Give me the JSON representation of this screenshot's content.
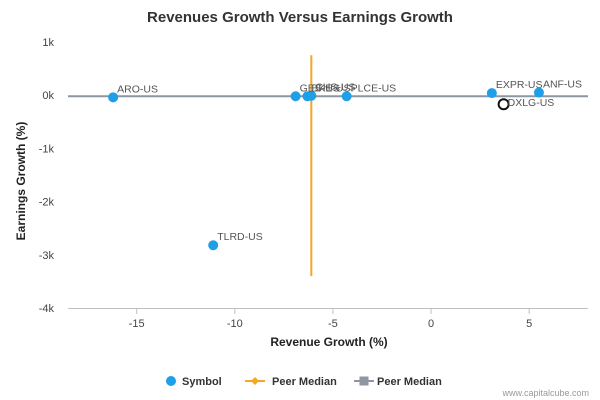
{
  "chart_data": {
    "type": "scatter",
    "title": "Revenues Growth Versus Earnings Growth",
    "xlabel": "Revenue Growth (%)",
    "ylabel": "Earnings Growth (%)",
    "xlim": [
      -18.5,
      8
    ],
    "ylim": [
      -4000,
      1000
    ],
    "x_ticks": [
      {
        "value": -15,
        "label": "-15"
      },
      {
        "value": -10,
        "label": "-10"
      },
      {
        "value": -5,
        "label": "-5"
      },
      {
        "value": 0,
        "label": "0"
      },
      {
        "value": 5,
        "label": "5"
      }
    ],
    "y_ticks": [
      {
        "value": 1000,
        "label": "1k"
      },
      {
        "value": 0,
        "label": "0k"
      },
      {
        "value": -1000,
        "label": "-1k"
      },
      {
        "value": -2000,
        "label": "-2k"
      },
      {
        "value": -3000,
        "label": "-3k"
      },
      {
        "value": -4000,
        "label": "-4k"
      }
    ],
    "grid": false,
    "series": [
      {
        "name": "Symbol",
        "color": "#1e9fe8",
        "points": [
          {
            "label": "ARO-US",
            "x": -16.2,
            "y": -40
          },
          {
            "label": "TLRD-US",
            "x": -11.1,
            "y": -2820
          },
          {
            "label": "GES-US",
            "x": -6.9,
            "y": -20
          },
          {
            "label": "BKE-US",
            "x": -6.3,
            "y": -20
          },
          {
            "label": "CHS-US",
            "x": -6.1,
            "y": -10
          },
          {
            "label": "PLCE-US",
            "x": -4.3,
            "y": -20
          },
          {
            "label": "EXPR-US",
            "x": 3.1,
            "y": 40
          },
          {
            "label": "ANF-US",
            "x": 5.5,
            "y": 50
          }
        ]
      },
      {
        "name": "Peer Median",
        "color": "#f5a623",
        "x": -6.1,
        "y_range": [
          -3400,
          750
        ]
      },
      {
        "name": "Peer Median",
        "color": "#8f96a3",
        "y": -20,
        "x_range": [
          -18.5,
          8
        ]
      }
    ],
    "highlight": {
      "label": "DXLG-US",
      "x": 3.7,
      "y": -170
    },
    "legend_position": "bottom"
  },
  "credit": "www.capitalcube.com"
}
